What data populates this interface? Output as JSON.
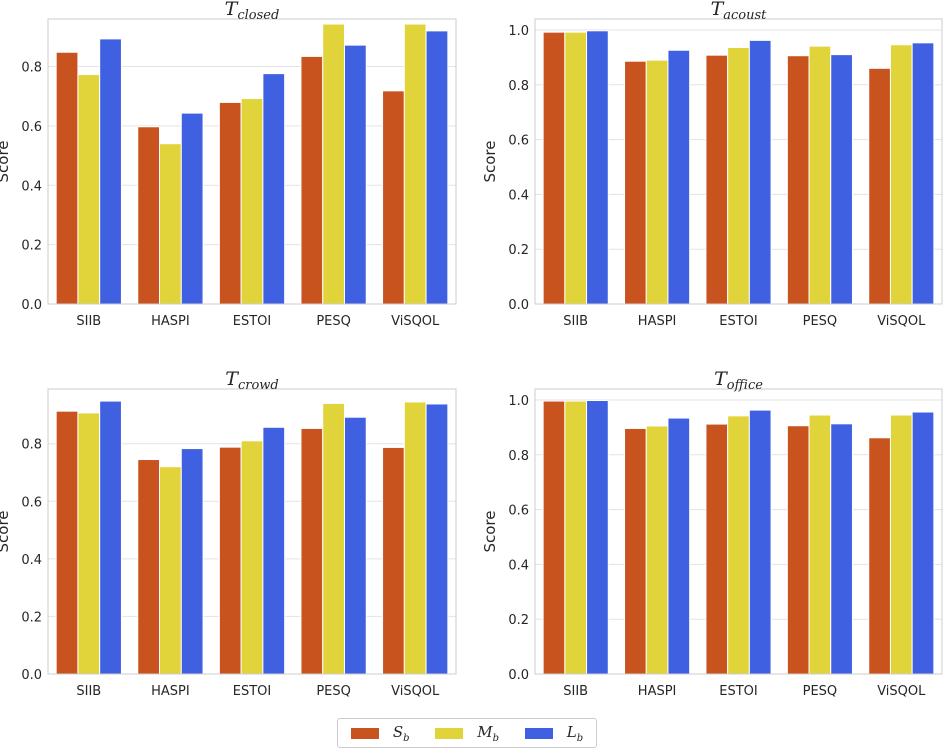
{
  "chart_data": [
    {
      "type": "bar",
      "title": "T_closed",
      "title_main": "T",
      "title_sub": "closed",
      "ylabel": "Score",
      "ylim": [
        0,
        0.96
      ],
      "yticks": [
        "0.0",
        "0.2",
        "0.4",
        "0.6",
        "0.8"
      ],
      "categories": [
        "SIIB",
        "HASPI",
        "ESTOI",
        "PESQ",
        "ViSQOL"
      ],
      "series": [
        {
          "name": "S_b",
          "values": [
            0.848,
            0.597,
            0.679,
            0.834,
            0.718
          ]
        },
        {
          "name": "M_b",
          "values": [
            0.773,
            0.54,
            0.692,
            0.943,
            0.943
          ]
        },
        {
          "name": "L_b",
          "values": [
            0.893,
            0.643,
            0.776,
            0.872,
            0.92
          ]
        }
      ]
    },
    {
      "type": "bar",
      "title": "T_acoust",
      "title_main": "T",
      "title_sub": "acoust",
      "ylabel": "Score",
      "ylim": [
        0,
        1.04
      ],
      "yticks": [
        "0.0",
        "0.2",
        "0.4",
        "0.6",
        "0.8",
        "1.0"
      ],
      "categories": [
        "SIIB",
        "HASPI",
        "ESTOI",
        "PESQ",
        "ViSQOL"
      ],
      "series": [
        {
          "name": "S_b",
          "values": [
            0.992,
            0.886,
            0.908,
            0.906,
            0.86
          ]
        },
        {
          "name": "M_b",
          "values": [
            0.992,
            0.89,
            0.936,
            0.941,
            0.946
          ]
        },
        {
          "name": "L_b",
          "values": [
            0.997,
            0.926,
            0.962,
            0.91,
            0.953
          ]
        }
      ]
    },
    {
      "type": "bar",
      "title": "T_crowd",
      "title_main": "T",
      "title_sub": "crowd",
      "ylabel": "Score",
      "ylim": [
        0,
        0.99
      ],
      "yticks": [
        "0.0",
        "0.2",
        "0.4",
        "0.6",
        "0.8"
      ],
      "categories": [
        "SIIB",
        "HASPI",
        "ESTOI",
        "PESQ",
        "ViSQOL"
      ],
      "series": [
        {
          "name": "S_b",
          "values": [
            0.913,
            0.745,
            0.788,
            0.853,
            0.787
          ]
        },
        {
          "name": "M_b",
          "values": [
            0.907,
            0.72,
            0.81,
            0.94,
            0.945
          ]
        },
        {
          "name": "L_b",
          "values": [
            0.948,
            0.783,
            0.857,
            0.892,
            0.938
          ]
        }
      ]
    },
    {
      "type": "bar",
      "title": "T_office",
      "title_main": "T",
      "title_sub": "office",
      "ylabel": "Score",
      "ylim": [
        0,
        1.04
      ],
      "yticks": [
        "0.0",
        "0.2",
        "0.4",
        "0.6",
        "0.8",
        "1.0"
      ],
      "categories": [
        "SIIB",
        "HASPI",
        "ESTOI",
        "PESQ",
        "ViSQOL"
      ],
      "series": [
        {
          "name": "S_b",
          "values": [
            0.996,
            0.896,
            0.912,
            0.906,
            0.862
          ]
        },
        {
          "name": "M_b",
          "values": [
            0.996,
            0.905,
            0.942,
            0.945,
            0.945
          ]
        },
        {
          "name": "L_b",
          "values": [
            0.998,
            0.934,
            0.963,
            0.913,
            0.956
          ]
        }
      ]
    }
  ],
  "legend": {
    "placement": "bottom-center",
    "items": [
      {
        "main": "S",
        "sub": "b"
      },
      {
        "main": "M",
        "sub": "b"
      },
      {
        "main": "L",
        "sub": "b"
      }
    ]
  },
  "colors": {
    "series": [
      "#c8531f",
      "#e1d43a",
      "#3f60e0"
    ],
    "grid": "#e3e3e3",
    "frame": "#cccccc",
    "text": "#262626"
  }
}
